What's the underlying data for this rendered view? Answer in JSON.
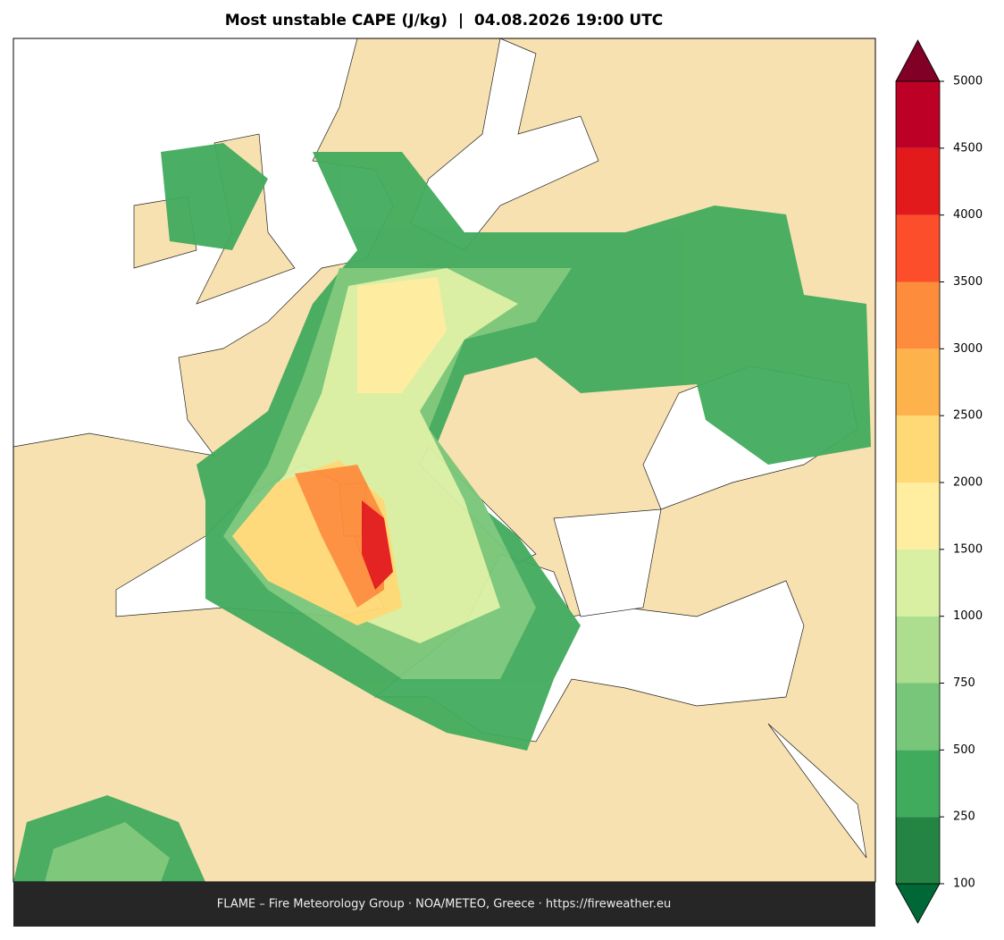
{
  "title": "Most unstable CAPE (J/kg)  |  04.08.2026 19:00 UTC",
  "footer": "FLAME – Fire Meteorology Group · NOA/METEO, Greece · https://fireweather.eu",
  "colorbar": {
    "levels": [
      100,
      250,
      500,
      750,
      1000,
      1500,
      2000,
      2500,
      3000,
      3500,
      4000,
      4500,
      5000
    ],
    "colors": [
      "#238443",
      "#41ab5d",
      "#78c679",
      "#addd8e",
      "#d9f0a3",
      "#ffeda0",
      "#fed976",
      "#feb24c",
      "#fd8d3c",
      "#fc4e2a",
      "#e31a1c",
      "#bd0026"
    ],
    "extend_below_color": "#006837",
    "extend_above_color": "#800026"
  }
}
